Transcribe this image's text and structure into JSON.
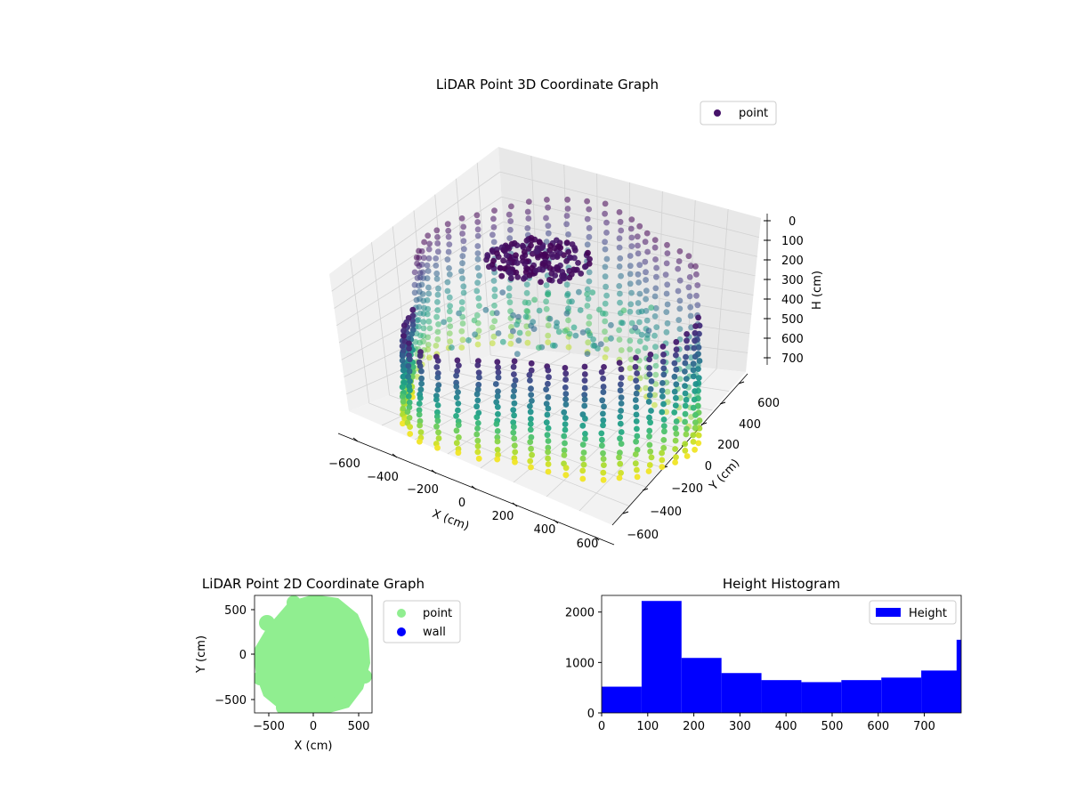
{
  "chart_data": [
    {
      "type": "scatter",
      "projection": "3d",
      "title": "LiDAR Point 3D Coordinate Graph",
      "xlabel": "X (cm)",
      "ylabel": "Y (cm)",
      "zlabel": "H (cm)",
      "xlim": [
        -650,
        650
      ],
      "ylim": [
        -650,
        650
      ],
      "zlim": [
        780,
        0
      ],
      "xticks": [
        "−600",
        "−400",
        "−200",
        "0",
        "200",
        "400",
        "600"
      ],
      "yticks": [
        "−600",
        "−400",
        "−200",
        "0",
        "200",
        "400",
        "600"
      ],
      "zticks": [
        "0",
        "100",
        "200",
        "300",
        "400",
        "500",
        "600",
        "700"
      ],
      "colormap": "viridis",
      "legend": {
        "label": "point",
        "position": "top-right",
        "color": "#46136a"
      },
      "series": [
        {
          "name": "point"
        }
      ]
    },
    {
      "type": "scatter",
      "title": "LiDAR Point 2D Coordinate Graph",
      "xlabel": "X (cm)",
      "ylabel": "Y (cm)",
      "xlim": [
        -650,
        650
      ],
      "ylim": [
        -650,
        650
      ],
      "xticks": [
        "−500",
        "0",
        "500"
      ],
      "yticks": [
        "500",
        "0",
        "−500"
      ],
      "legend_position": "outside-right",
      "series": [
        {
          "name": "point",
          "color": "#90ee90"
        },
        {
          "name": "wall",
          "color": "#0000ff"
        }
      ]
    },
    {
      "type": "bar",
      "title": "Height Histogram",
      "xlim": [
        0,
        780
      ],
      "ylim": [
        0,
        2330
      ],
      "xticks": [
        "0",
        "100",
        "200",
        "300",
        "400",
        "500",
        "600",
        "700"
      ],
      "yticks": [
        "0",
        "1000",
        "2000"
      ],
      "bin_edges": [
        0,
        86.7,
        173.3,
        260,
        346.7,
        433.3,
        520,
        606.7,
        693.3,
        780
      ],
      "values": [
        520,
        2220,
        1090,
        790,
        650,
        610,
        650,
        700,
        840
      ],
      "extra_bar": {
        "x_start": 770,
        "value": 1450
      },
      "legend": {
        "label": "Height",
        "position": "top-right"
      },
      "color": "#0000ff"
    }
  ]
}
